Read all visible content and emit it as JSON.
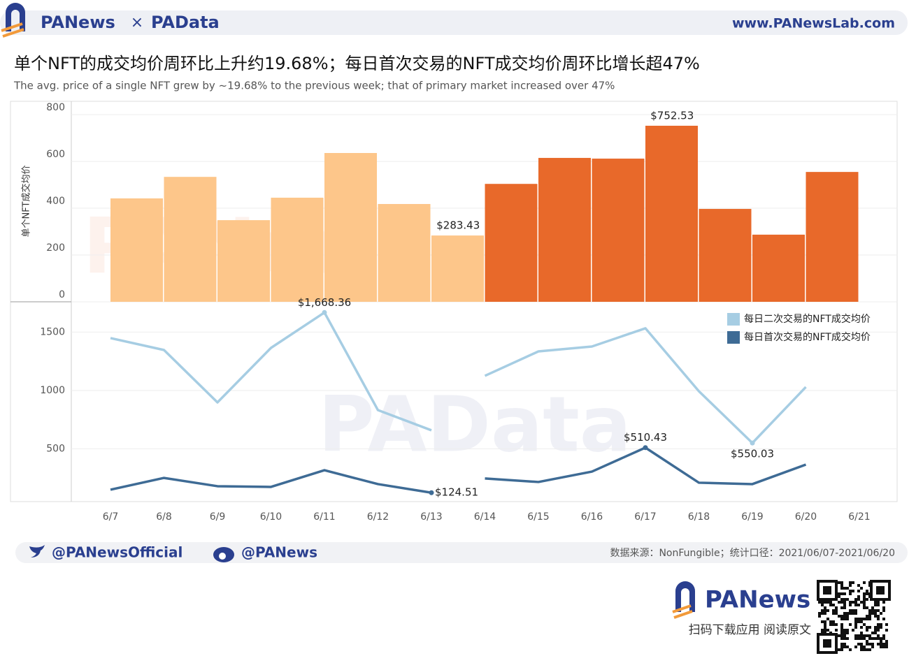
{
  "header": {
    "brand_left": "PANews",
    "brand_sep": "×",
    "brand_right": "PAData",
    "url": "www.PANewsLab.com"
  },
  "watermarks": [
    "PANews",
    "PAData"
  ],
  "chart_data": [
    {
      "type": "bar",
      "title": "单个NFT的成交均价周环比上升约19.68%；每日首次交易的NFT成交均价周环比增长超47%",
      "subtitle": "The avg. price of a single NFT grew by ~19.68% to the previous week; that of primary market increased over 47%",
      "y_label": "单个NFT成交均价",
      "values": [
        442,
        534,
        349,
        445,
        636,
        418,
        283.43,
        504,
        615,
        612,
        752.53,
        397,
        287,
        555,
        null
      ],
      "value_labels": [
        null,
        null,
        null,
        null,
        null,
        null,
        "$283.43",
        null,
        null,
        null,
        "$752.53",
        null,
        null,
        null,
        null
      ],
      "colors": [
        "#fdc68a",
        "#fdc68a",
        "#fdc68a",
        "#fdc68a",
        "#fdc68a",
        "#fdc68a",
        "#fdc68a",
        "#e8692a",
        "#e8692a",
        "#e8692a",
        "#e8692a",
        "#e8692a",
        "#e8692a",
        "#e8692a",
        null
      ],
      "ylim": [
        0,
        857
      ],
      "yticks": [
        0,
        200,
        400,
        600,
        800
      ],
      "grid": true
    },
    {
      "type": "line",
      "categories": [
        "6/7",
        "6/8",
        "6/9",
        "6/10",
        "6/11",
        "6/12",
        "6/13",
        "6/14",
        "6/15",
        "6/16",
        "6/17",
        "6/18",
        "6/19",
        "6/20",
        "6/21"
      ],
      "series": [
        {
          "name": "每日二次交易的NFT成交均价",
          "color": "#a6cde3",
          "values": [
            1449,
            1347,
            898,
            1365,
            1668.36,
            832,
            659,
            1126,
            1335,
            1377,
            1533,
            994,
            550.03,
            1030,
            null
          ],
          "value_labels": [
            null,
            null,
            null,
            null,
            "$1,668.36",
            null,
            null,
            null,
            null,
            null,
            null,
            null,
            "$550.03",
            null,
            null
          ]
        },
        {
          "name": "每日首次交易的NFT成交均价",
          "color": "#3e6b95",
          "values": [
            150,
            251,
            180,
            174,
            317,
            198,
            124.51,
            246,
            216,
            305,
            510.43,
            210,
            198,
            365,
            null
          ],
          "value_labels": [
            null,
            null,
            null,
            null,
            null,
            null,
            "$124.51",
            null,
            null,
            null,
            "$510.43",
            null,
            null,
            null,
            null
          ]
        }
      ],
      "ylim": [
        48,
        1760
      ],
      "yticks": [
        500,
        1000,
        1500
      ],
      "grid": true,
      "legend": "top-right"
    }
  ],
  "footer": {
    "twitter": "@PANewsOfficial",
    "weibo": "@PANews",
    "source": "数据来源：NonFungible；统计口径：2021/06/07-2021/06/20",
    "app_name": "PANews",
    "app_cta": "扫码下载应用 阅读原文"
  }
}
